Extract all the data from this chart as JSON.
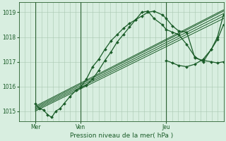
{
  "bg_color": "#d8eee0",
  "grid_color": "#a8c8b0",
  "line_color": "#1a5c28",
  "marker_color": "#1a5c28",
  "title": "Pression niveau de la mer( hPa )",
  "ylim": [
    1014.6,
    1019.4
  ],
  "yticks": [
    1015,
    1016,
    1017,
    1018,
    1019
  ],
  "xtick_labels": [
    "Mer",
    "Ven",
    "Jeu"
  ],
  "xtick_positions": [
    0.08,
    0.3,
    0.72
  ],
  "vline_positions": [
    0.08,
    0.3,
    0.72
  ],
  "series_main": {
    "x": [
      0.08,
      0.1,
      0.12,
      0.14,
      0.16,
      0.18,
      0.2,
      0.22,
      0.25,
      0.28,
      0.3,
      0.33,
      0.36,
      0.39,
      0.42,
      0.45,
      0.48,
      0.51,
      0.54,
      0.57,
      0.6,
      0.63,
      0.66,
      0.7,
      0.72,
      0.75,
      0.78,
      0.82,
      0.86,
      0.9,
      0.94,
      0.97,
      1.0
    ],
    "y": [
      1015.3,
      1015.1,
      1015.05,
      1014.85,
      1014.75,
      1015.0,
      1015.1,
      1015.3,
      1015.6,
      1015.85,
      1015.95,
      1016.3,
      1016.8,
      1017.1,
      1017.5,
      1017.85,
      1018.1,
      1018.35,
      1018.55,
      1018.7,
      1018.85,
      1019.0,
      1019.05,
      1018.9,
      1018.75,
      1018.45,
      1018.25,
      1018.2,
      1017.15,
      1017.05,
      1017.0,
      1016.95,
      1017.0
    ]
  },
  "series_squiggly": {
    "x": [
      0.3,
      0.33,
      0.36,
      0.39,
      0.42,
      0.45,
      0.48,
      0.51,
      0.54,
      0.57,
      0.6,
      0.63,
      0.66,
      0.7,
      0.72,
      0.75,
      0.78,
      0.82,
      0.86,
      0.9,
      0.94,
      0.97,
      1.0
    ],
    "y": [
      1015.95,
      1016.05,
      1016.3,
      1016.65,
      1017.05,
      1017.4,
      1017.8,
      1018.1,
      1018.4,
      1018.7,
      1019.0,
      1019.05,
      1018.75,
      1018.5,
      1018.3,
      1018.2,
      1018.1,
      1017.7,
      1017.2,
      1017.0,
      1017.5,
      1017.9,
      1018.5
    ]
  },
  "series_squiggly2": {
    "x": [
      0.72,
      0.75,
      0.78,
      0.82,
      0.86,
      0.9,
      0.94,
      0.97,
      1.0
    ],
    "y": [
      1017.05,
      1016.95,
      1016.85,
      1016.8,
      1016.9,
      1017.1,
      1017.5,
      1018.0,
      1018.9
    ]
  },
  "straight_lines": [
    {
      "x": [
        0.08,
        1.0
      ],
      "y": [
        1015.2,
        1019.1
      ]
    },
    {
      "x": [
        0.08,
        1.0
      ],
      "y": [
        1015.15,
        1019.05
      ]
    },
    {
      "x": [
        0.08,
        1.0
      ],
      "y": [
        1015.1,
        1018.95
      ]
    },
    {
      "x": [
        0.08,
        1.0
      ],
      "y": [
        1015.05,
        1018.85
      ]
    },
    {
      "x": [
        0.08,
        1.0
      ],
      "y": [
        1015.0,
        1018.75
      ]
    }
  ],
  "figsize": [
    3.2,
    2.0
  ],
  "dpi": 100
}
